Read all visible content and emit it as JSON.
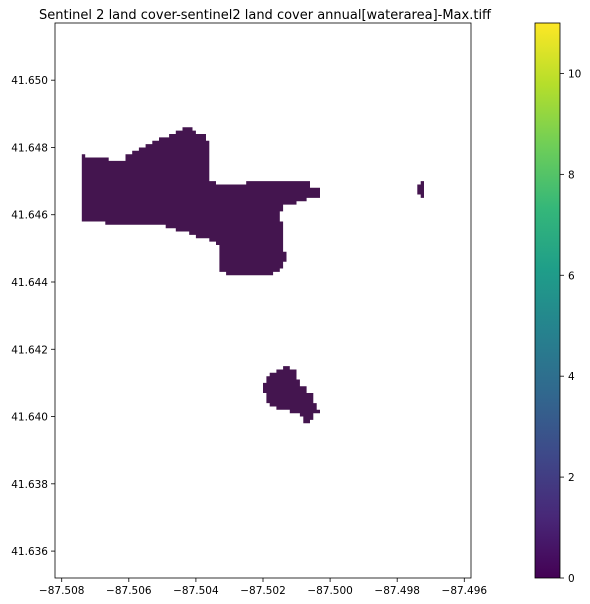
{
  "title": "Sentinel 2 land cover-sentinel2 land cover annual[waterarea]-Max.tiff",
  "map": {
    "xlim": [
      -87.5082,
      -87.4958
    ],
    "ylim": [
      41.6352,
      41.6517
    ],
    "x_ticks": [
      -87.508,
      -87.506,
      -87.504,
      -87.502,
      -87.5,
      -87.498,
      -87.496
    ],
    "x_tick_labels": [
      "−87.508",
      "−87.506",
      "−87.504",
      "−87.502",
      "−87.500",
      "−87.498",
      "−87.496"
    ],
    "y_ticks": [
      41.636,
      41.638,
      41.64,
      41.642,
      41.644,
      41.646,
      41.648,
      41.65
    ],
    "y_tick_labels": [
      "41.636",
      "41.638",
      "41.640",
      "41.642",
      "41.644",
      "41.646",
      "41.648",
      "41.650"
    ],
    "water_color": "#44154f",
    "water_regions": [
      {
        "name": "main-lake",
        "value": 1,
        "outline": [
          [
            -87.5074,
            41.6478
          ],
          [
            -87.5073,
            41.6478
          ],
          [
            -87.5073,
            41.6477
          ],
          [
            -87.5066,
            41.6477
          ],
          [
            -87.5066,
            41.6476
          ],
          [
            -87.5061,
            41.6476
          ],
          [
            -87.5061,
            41.6478
          ],
          [
            -87.5059,
            41.6478
          ],
          [
            -87.5059,
            41.6479
          ],
          [
            -87.5057,
            41.6479
          ],
          [
            -87.5057,
            41.648
          ],
          [
            -87.5055,
            41.648
          ],
          [
            -87.5055,
            41.6481
          ],
          [
            -87.5053,
            41.6481
          ],
          [
            -87.5053,
            41.6482
          ],
          [
            -87.5051,
            41.6482
          ],
          [
            -87.5051,
            41.6483
          ],
          [
            -87.5048,
            41.6483
          ],
          [
            -87.5048,
            41.6484
          ],
          [
            -87.5046,
            41.6484
          ],
          [
            -87.5046,
            41.6485
          ],
          [
            -87.5044,
            41.6485
          ],
          [
            -87.5044,
            41.6486
          ],
          [
            -87.5041,
            41.6486
          ],
          [
            -87.5041,
            41.6485
          ],
          [
            -87.504,
            41.6485
          ],
          [
            -87.504,
            41.6484
          ],
          [
            -87.5037,
            41.6484
          ],
          [
            -87.5037,
            41.6482
          ],
          [
            -87.5036,
            41.6482
          ],
          [
            -87.5036,
            41.647
          ],
          [
            -87.5034,
            41.647
          ],
          [
            -87.5034,
            41.6469
          ],
          [
            -87.5025,
            41.6469
          ],
          [
            -87.5025,
            41.647
          ],
          [
            -87.5006,
            41.647
          ],
          [
            -87.5006,
            41.6468
          ],
          [
            -87.5003,
            41.6468
          ],
          [
            -87.5003,
            41.6465
          ],
          [
            -87.5007,
            41.6465
          ],
          [
            -87.5007,
            41.6464
          ],
          [
            -87.501,
            41.6464
          ],
          [
            -87.501,
            41.6463
          ],
          [
            -87.5014,
            41.6463
          ],
          [
            -87.5014,
            41.6461
          ],
          [
            -87.5015,
            41.6461
          ],
          [
            -87.5015,
            41.6458
          ],
          [
            -87.5014,
            41.6458
          ],
          [
            -87.5014,
            41.6449
          ],
          [
            -87.5013,
            41.6449
          ],
          [
            -87.5013,
            41.6446
          ],
          [
            -87.5014,
            41.6446
          ],
          [
            -87.5014,
            41.6444
          ],
          [
            -87.5015,
            41.6444
          ],
          [
            -87.5015,
            41.6443
          ],
          [
            -87.5017,
            41.6443
          ],
          [
            -87.5017,
            41.6442
          ],
          [
            -87.5031,
            41.6442
          ],
          [
            -87.5031,
            41.6443
          ],
          [
            -87.5033,
            41.6443
          ],
          [
            -87.5033,
            41.6451
          ],
          [
            -87.5034,
            41.6451
          ],
          [
            -87.5034,
            41.6452
          ],
          [
            -87.5036,
            41.6452
          ],
          [
            -87.5036,
            41.6453
          ],
          [
            -87.504,
            41.6453
          ],
          [
            -87.504,
            41.6454
          ],
          [
            -87.5042,
            41.6454
          ],
          [
            -87.5042,
            41.6455
          ],
          [
            -87.5046,
            41.6455
          ],
          [
            -87.5046,
            41.6456
          ],
          [
            -87.5049,
            41.6456
          ],
          [
            -87.5049,
            41.6457
          ],
          [
            -87.5067,
            41.6457
          ],
          [
            -87.5067,
            41.6458
          ],
          [
            -87.5074,
            41.6458
          ]
        ]
      },
      {
        "name": "south-pond",
        "value": 1,
        "outline": [
          [
            -87.5019,
            41.6412
          ],
          [
            -87.5018,
            41.6412
          ],
          [
            -87.5018,
            41.6413
          ],
          [
            -87.5016,
            41.6413
          ],
          [
            -87.5016,
            41.6414
          ],
          [
            -87.5014,
            41.6414
          ],
          [
            -87.5014,
            41.6415
          ],
          [
            -87.5012,
            41.6415
          ],
          [
            -87.5012,
            41.6414
          ],
          [
            -87.501,
            41.6414
          ],
          [
            -87.501,
            41.6411
          ],
          [
            -87.5009,
            41.6411
          ],
          [
            -87.5009,
            41.6409
          ],
          [
            -87.5007,
            41.6409
          ],
          [
            -87.5007,
            41.6407
          ],
          [
            -87.5005,
            41.6407
          ],
          [
            -87.5005,
            41.6404
          ],
          [
            -87.5004,
            41.6404
          ],
          [
            -87.5004,
            41.6402
          ],
          [
            -87.5003,
            41.6402
          ],
          [
            -87.5003,
            41.6401
          ],
          [
            -87.5005,
            41.6401
          ],
          [
            -87.5005,
            41.6399
          ],
          [
            -87.5006,
            41.6399
          ],
          [
            -87.5006,
            41.6398
          ],
          [
            -87.5008,
            41.6398
          ],
          [
            -87.5008,
            41.64
          ],
          [
            -87.5009,
            41.64
          ],
          [
            -87.5009,
            41.6401
          ],
          [
            -87.5012,
            41.6401
          ],
          [
            -87.5012,
            41.6402
          ],
          [
            -87.5016,
            41.6402
          ],
          [
            -87.5016,
            41.6403
          ],
          [
            -87.5018,
            41.6403
          ],
          [
            -87.5018,
            41.6404
          ],
          [
            -87.5019,
            41.6404
          ],
          [
            -87.5019,
            41.6407
          ],
          [
            -87.502,
            41.6407
          ],
          [
            -87.502,
            41.641
          ],
          [
            -87.5019,
            41.641
          ]
        ]
      },
      {
        "name": "east-speck",
        "value": 1,
        "outline": [
          [
            -87.4974,
            41.6469
          ],
          [
            -87.4973,
            41.6469
          ],
          [
            -87.4973,
            41.647
          ],
          [
            -87.4972,
            41.647
          ],
          [
            -87.4972,
            41.6465
          ],
          [
            -87.4973,
            41.6465
          ],
          [
            -87.4973,
            41.6466
          ],
          [
            -87.4974,
            41.6466
          ]
        ]
      }
    ]
  },
  "colorbar": {
    "min": 0,
    "max": 11,
    "ticks": [
      0,
      2,
      4,
      6,
      8,
      10
    ],
    "tick_labels": [
      "0",
      "2",
      "4",
      "6",
      "8",
      "10"
    ],
    "colormap": "viridis",
    "colormap_stops": [
      "#440154",
      "#482878",
      "#3e4989",
      "#31688e",
      "#26828e",
      "#1f9e89",
      "#35b779",
      "#6ece58",
      "#b5de2b",
      "#fde725"
    ]
  }
}
